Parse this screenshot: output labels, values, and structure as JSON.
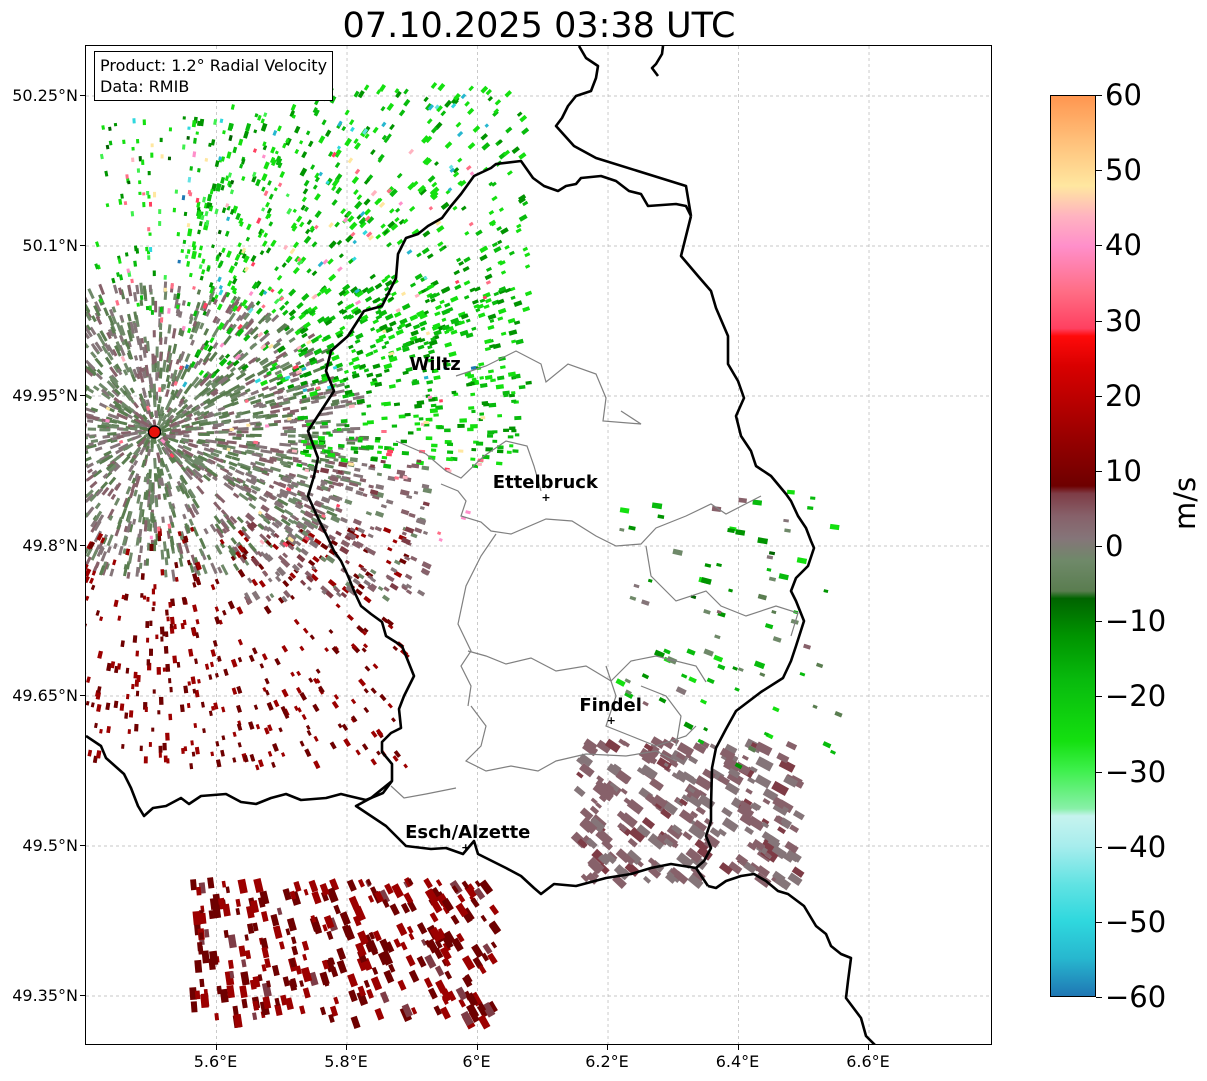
{
  "title": "07.10.2025 03:38 UTC",
  "info": {
    "product": "Product: 1.2° Radial Velocity",
    "source": "Data: RMIB"
  },
  "axes": {
    "lat_labels": [
      "50.25°N",
      "50.1°N",
      "49.95°N",
      "49.8°N",
      "49.65°N",
      "49.5°N",
      "49.35°N"
    ],
    "lon_labels": [
      "5.6°E",
      "5.8°E",
      "6°E",
      "6.2°E",
      "6.4°E",
      "6.6°E"
    ],
    "lat_range": [
      49.3,
      50.3
    ],
    "lon_range": [
      5.4,
      6.79
    ],
    "grid": true
  },
  "places": [
    {
      "name": "Wiltz",
      "lat": 49.966,
      "lon": 5.935,
      "marker": false
    },
    {
      "name": "Ettelbruck",
      "lat": 49.848,
      "lon": 6.104,
      "marker": true
    },
    {
      "name": "Findel",
      "lat": 49.625,
      "lon": 6.204,
      "marker": true
    },
    {
      "name": "Esch/Alzette",
      "lat": 49.498,
      "lon": 5.981,
      "marker": true
    }
  ],
  "radar_site": {
    "lat": 49.914,
    "lon": 5.505,
    "color": "#e8120c"
  },
  "colorbar": {
    "unit": "m/s",
    "min": -60,
    "max": 60,
    "tick_labels": [
      "60",
      "50",
      "40",
      "30",
      "20",
      "10",
      "0",
      "−10",
      "−20",
      "−30",
      "−40",
      "−50",
      "−60"
    ],
    "stops": [
      {
        "v": -60,
        "c": "#1f77b4"
      },
      {
        "v": -55,
        "c": "#27b7cf"
      },
      {
        "v": -50,
        "c": "#2fd8de"
      },
      {
        "v": -45,
        "c": "#62e3e3"
      },
      {
        "v": -40,
        "c": "#a7eded"
      },
      {
        "v": -36,
        "c": "#c6f3ee"
      },
      {
        "v": -35,
        "c": "#88f0a8"
      },
      {
        "v": -30,
        "c": "#3ff04e"
      },
      {
        "v": -26,
        "c": "#14e010"
      },
      {
        "v": -18,
        "c": "#08bb0d"
      },
      {
        "v": -12,
        "c": "#009400"
      },
      {
        "v": -7,
        "c": "#006400"
      },
      {
        "v": -6,
        "c": "#5a7d50"
      },
      {
        "v": -2,
        "c": "#6f8969"
      },
      {
        "v": 1,
        "c": "#857579"
      },
      {
        "v": 4,
        "c": "#87616a"
      },
      {
        "v": 7,
        "c": "#7e3c46"
      },
      {
        "v": 8,
        "c": "#6e0000"
      },
      {
        "v": 15,
        "c": "#9c0000"
      },
      {
        "v": 24,
        "c": "#d90000"
      },
      {
        "v": 28,
        "c": "#ff0a0a"
      },
      {
        "v": 29,
        "c": "#ff4060"
      },
      {
        "v": 34,
        "c": "#ff6e86"
      },
      {
        "v": 40,
        "c": "#ff8fca"
      },
      {
        "v": 44,
        "c": "#ffb3c0"
      },
      {
        "v": 48,
        "c": "#ffe7a0"
      },
      {
        "v": 54,
        "c": "#ffc07a"
      },
      {
        "v": 60,
        "c": "#ff9650"
      }
    ]
  }
}
